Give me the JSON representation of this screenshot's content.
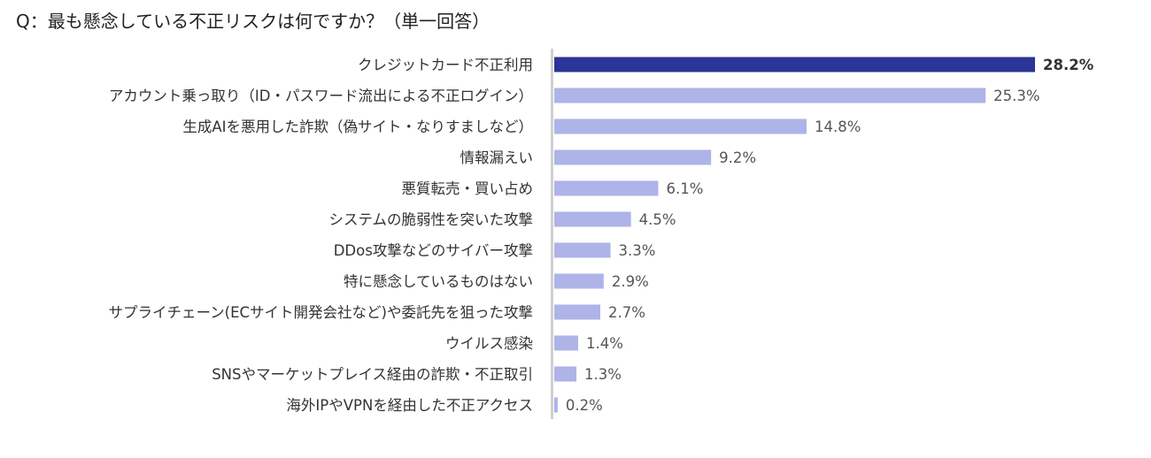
{
  "chart_data": {
    "type": "bar",
    "orientation": "horizontal",
    "title": "Q：最も懸念している不正リスクは何ですか？（単一回答）",
    "xlabel": "",
    "ylabel": "",
    "xlim": [
      0,
      28.2
    ],
    "grid": false,
    "categories": [
      "クレジットカード不正利用",
      "アカウント乗っ取り（ID・パスワード流出による不正ログイン）",
      "生成AIを悪用した詐欺（偽サイト・なりすましなど）",
      "情報漏えい",
      "悪質転売・買い占め",
      "システムの脆弱性を突いた攻撃",
      "DDos攻撃などのサイバー攻撃",
      "特に懸念しているものはない",
      "サプライチェーン(ECサイト開発会社など)や委託先を狙った攻撃",
      "ウイルス感染",
      "SNSやマーケットプレイス経由の詐欺・不正取引",
      "海外IPやVPNを経由した不正アクセス"
    ],
    "values": [
      28.2,
      25.3,
      14.8,
      9.2,
      6.1,
      4.5,
      3.3,
      2.9,
      2.7,
      1.4,
      1.3,
      0.2
    ],
    "value_labels": [
      "28.2%",
      "25.3%",
      "14.8%",
      "9.2%",
      "6.1%",
      "4.5%",
      "3.3%",
      "2.9%",
      "2.7%",
      "1.4%",
      "1.3%",
      "0.2%"
    ],
    "colors": {
      "highlight": "#2b3497",
      "default": "#aeb3e8",
      "axis": "#d0d0d0"
    }
  }
}
